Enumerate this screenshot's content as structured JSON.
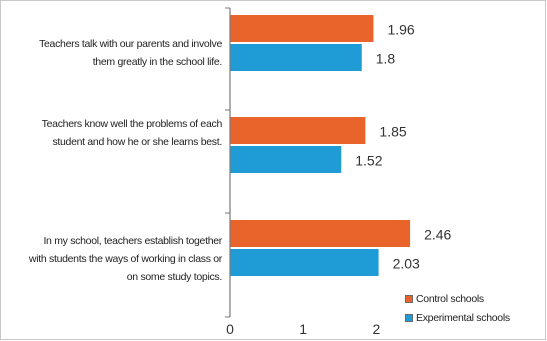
{
  "chart_data": {
    "type": "bar",
    "orientation": "horizontal",
    "categories": [
      "Teachers talk with our parents and involve them greatly in the school life.",
      "Teachers know well the problems of each student and how he or she learns best.",
      "In my school, teachers establish together with students the ways of working in class or on some study topics."
    ],
    "category_lines": [
      [
        "Teachers talk with our parents and involve",
        "them greatly in the school life."
      ],
      [
        "Teachers know well the problems of each",
        "student and how he or she learns best."
      ],
      [
        "In my school, teachers establish together",
        "with students the ways of working in class or",
        "on some study topics."
      ]
    ],
    "series": [
      {
        "name": "Control schools",
        "color": "#e8642a",
        "values": [
          1.96,
          1.85,
          2.46
        ],
        "labels": [
          "1.96",
          "1.85",
          "2.46"
        ]
      },
      {
        "name": "Experimental schools",
        "color": "#1f9bd6",
        "values": [
          1.8,
          1.52,
          2.03
        ],
        "labels": [
          "1.8",
          "1.52",
          "2.03"
        ]
      }
    ],
    "xlim": [
      0,
      2.5
    ],
    "xticks": [
      0,
      1,
      2
    ],
    "xtick_labels": [
      "0",
      "1",
      "2"
    ],
    "legend_position": "bottom-right",
    "grid": false
  }
}
